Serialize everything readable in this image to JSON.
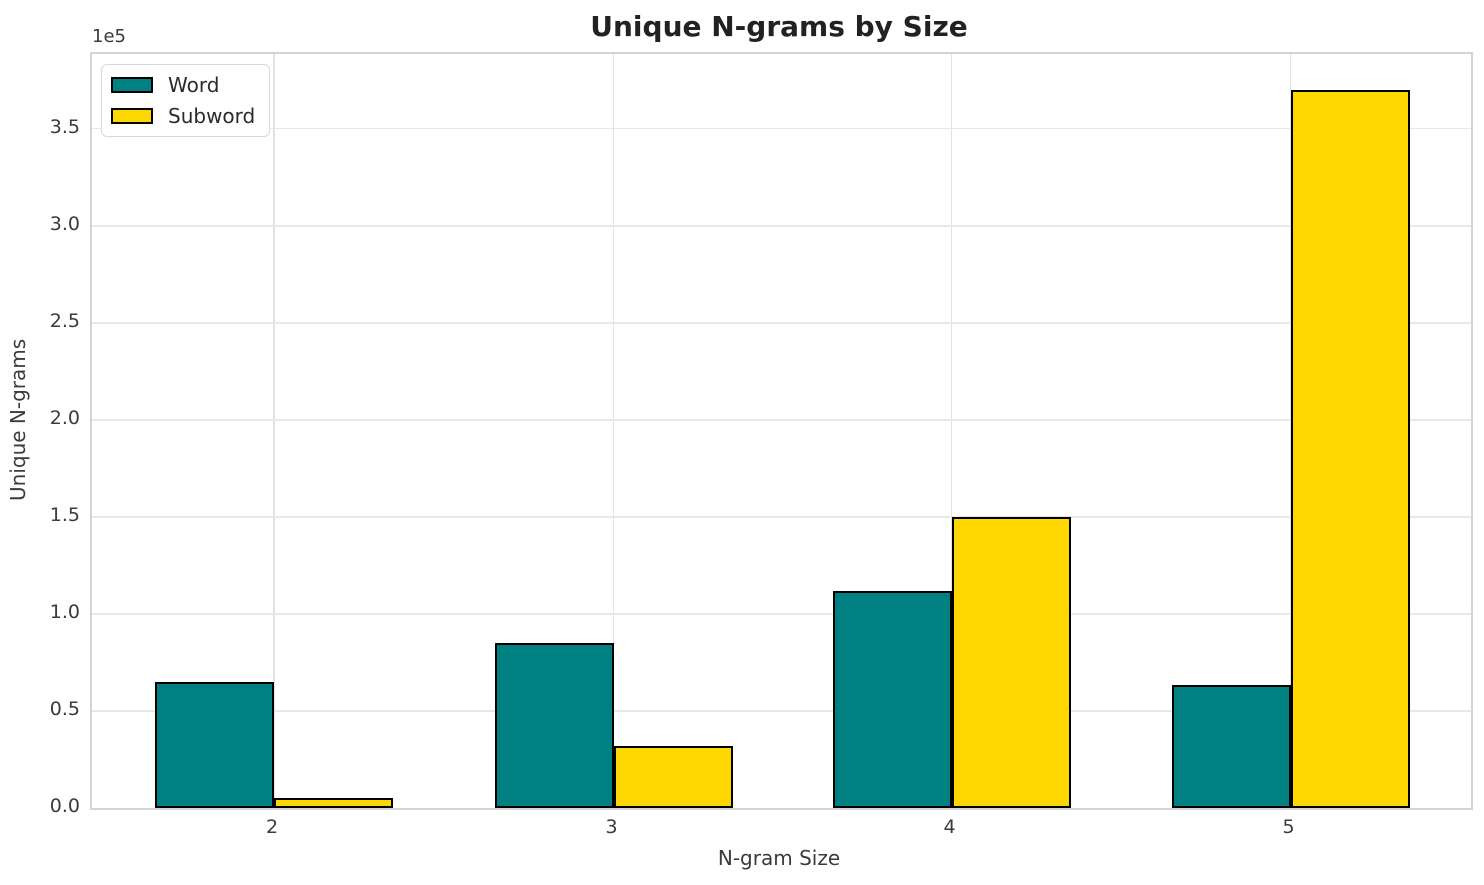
{
  "chart_data": {
    "type": "bar",
    "title": "Unique N-grams by Size",
    "xlabel": "N-gram Size",
    "ylabel": "Unique N-grams",
    "y_offset_label": "1e5",
    "categories": [
      "2",
      "3",
      "4",
      "5"
    ],
    "series": [
      {
        "name": "Word",
        "color": "#008080",
        "values": [
          65000,
          85000,
          112000,
          63500
        ]
      },
      {
        "name": "Subword",
        "color": "#FFD700",
        "values": [
          5000,
          32000,
          150000,
          370000
        ]
      }
    ],
    "bar_edge_color": "#000000",
    "ylim": [
      0,
      388500
    ],
    "yticks": [
      0,
      50000,
      100000,
      150000,
      200000,
      250000,
      300000,
      350000
    ],
    "ytick_labels": [
      "0.0",
      "0.5",
      "1.0",
      "1.5",
      "2.0",
      "2.5",
      "3.0",
      "3.5"
    ],
    "grid": true,
    "legend_position": "upper left"
  }
}
